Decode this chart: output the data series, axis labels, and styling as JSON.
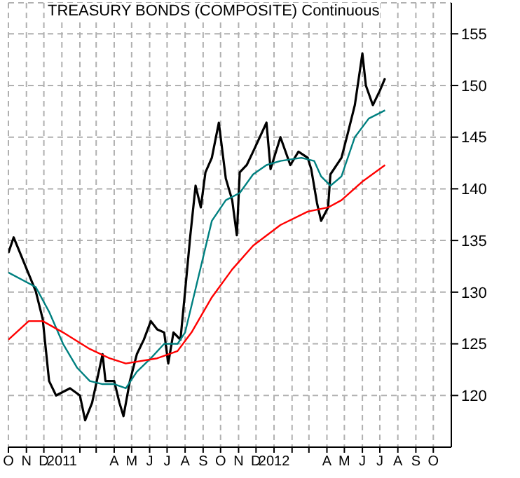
{
  "chart_data": {
    "type": "line",
    "title": "TREASURY BONDS (COMPOSITE) Continuous",
    "series": [
      {
        "color": "#000000",
        "x": [
          "2010-10-01",
          "2010-10-10",
          "2010-11-17",
          "2010-11-29",
          "2010-12-10",
          "2010-12-22",
          "2011-01-15",
          "2011-02-01",
          "2011-02-10",
          "2011-02-22",
          "2011-03-12",
          "2011-03-17",
          "2011-04-01",
          "2011-04-10",
          "2011-04-17",
          "2011-04-28",
          "2011-05-10",
          "2011-05-22",
          "2011-06-03",
          "2011-06-14",
          "2011-06-26",
          "2011-07-03",
          "2011-07-12",
          "2011-07-24",
          "2011-08-01",
          "2011-08-10",
          "2011-08-19",
          "2011-08-28",
          "2011-09-05",
          "2011-09-16",
          "2011-09-28",
          "2011-10-10",
          "2011-10-21",
          "2011-10-29",
          "2011-11-03",
          "2011-11-15",
          "2011-11-26",
          "2011-12-19",
          "2011-12-26",
          "2012-01-12",
          "2012-01-29",
          "2012-02-12",
          "2012-02-28",
          "2012-03-05",
          "2012-03-15",
          "2012-03-22",
          "2012-04-03",
          "2012-04-07",
          "2012-04-26",
          "2012-05-07",
          "2012-05-19",
          "2012-06-01",
          "2012-06-07",
          "2012-06-19",
          "2012-07-01",
          "2012-07-10"
        ],
        "values": [
          133.8,
          135.3,
          130.1,
          127.4,
          121.4,
          120,
          120.7,
          120,
          117.6,
          119.3,
          124,
          121.4,
          121.4,
          119.3,
          118,
          121.4,
          124,
          125.4,
          127.2,
          126.4,
          126.1,
          123.1,
          126.1,
          125.4,
          130.1,
          135.5,
          140.3,
          138.2,
          141.6,
          143,
          146.4,
          141,
          138.9,
          135.5,
          141.6,
          142.3,
          143.6,
          146.4,
          141.9,
          145,
          142.3,
          143.6,
          143,
          141.9,
          138.6,
          136.9,
          138.2,
          141.4,
          143,
          145.4,
          148.1,
          153.1,
          150,
          148.1,
          149.5,
          150.7
        ]
      },
      {
        "color": "#008080",
        "x": [
          "2010-10-01",
          "2010-11-17",
          "2010-12-10",
          "2011-01-03",
          "2011-01-27",
          "2011-02-18",
          "2011-03-12",
          "2011-04-01",
          "2011-04-21",
          "2011-05-10",
          "2011-06-03",
          "2011-06-26",
          "2011-07-19",
          "2011-08-01",
          "2011-08-24",
          "2011-09-16",
          "2011-10-10",
          "2011-11-03",
          "2011-11-26",
          "2011-12-19",
          "2012-01-12",
          "2012-02-17",
          "2012-03-10",
          "2012-03-22",
          "2012-04-07",
          "2012-04-26",
          "2012-05-19",
          "2012-06-12",
          "2012-07-10"
        ],
        "values": [
          131.9,
          130.5,
          128.1,
          125,
          122.7,
          121.4,
          121.1,
          121.1,
          120.7,
          122.3,
          123.6,
          125,
          125,
          126.1,
          131.5,
          136.9,
          138.9,
          139.6,
          141.4,
          142.3,
          142.7,
          143,
          142.7,
          141.2,
          140.3,
          141.2,
          145,
          146.8,
          147.6
        ]
      },
      {
        "color": "#ff0000",
        "x": [
          "2010-10-01",
          "2010-11-05",
          "2010-11-29",
          "2011-01-03",
          "2011-02-18",
          "2011-03-24",
          "2011-04-21",
          "2011-06-14",
          "2011-07-19",
          "2011-08-12",
          "2011-09-16",
          "2011-10-21",
          "2011-11-26",
          "2012-01-12",
          "2012-02-28",
          "2012-04-03",
          "2012-04-26",
          "2012-06-01",
          "2012-07-10"
        ],
        "values": [
          125.4,
          127.2,
          127.2,
          126.1,
          124.5,
          123.6,
          123.1,
          123.6,
          124.3,
          126.1,
          129.5,
          132.2,
          134.5,
          136.5,
          137.8,
          138.2,
          138.9,
          140.7,
          142.3
        ]
      }
    ],
    "xlim": [
      "2010-10-01",
      "2012-11-01"
    ],
    "xticks": [
      {
        "value": "2010-10",
        "label": "O"
      },
      {
        "value": "2010-11",
        "label": "N"
      },
      {
        "value": "2010-12",
        "label": "D"
      },
      {
        "value": "2011-01",
        "label": "2011"
      },
      {
        "value": "2011-02",
        "label": null
      },
      {
        "value": "2011-03",
        "label": null
      },
      {
        "value": "2011-04",
        "label": "A"
      },
      {
        "value": "2011-05",
        "label": "M"
      },
      {
        "value": "2011-06",
        "label": "J"
      },
      {
        "value": "2011-07",
        "label": "J"
      },
      {
        "value": "2011-08",
        "label": "A"
      },
      {
        "value": "2011-09",
        "label": "S"
      },
      {
        "value": "2011-10",
        "label": "O"
      },
      {
        "value": "2011-11",
        "label": "N"
      },
      {
        "value": "2011-12",
        "label": "D"
      },
      {
        "value": "2012-01",
        "label": "2012"
      },
      {
        "value": "2012-02",
        "label": null
      },
      {
        "value": "2012-03",
        "label": null
      },
      {
        "value": "2012-04",
        "label": "A"
      },
      {
        "value": "2012-05",
        "label": "M"
      },
      {
        "value": "2012-06",
        "label": "J"
      },
      {
        "value": "2012-07",
        "label": "J"
      },
      {
        "value": "2012-08",
        "label": "A"
      },
      {
        "value": "2012-09",
        "label": "S"
      },
      {
        "value": "2012-10",
        "label": "O"
      }
    ],
    "ylim": [
      115,
      158
    ],
    "yticks": [
      120,
      125,
      130,
      135,
      140,
      145,
      150,
      155
    ],
    "grid": true,
    "marker": "none",
    "line_style": "solid"
  }
}
